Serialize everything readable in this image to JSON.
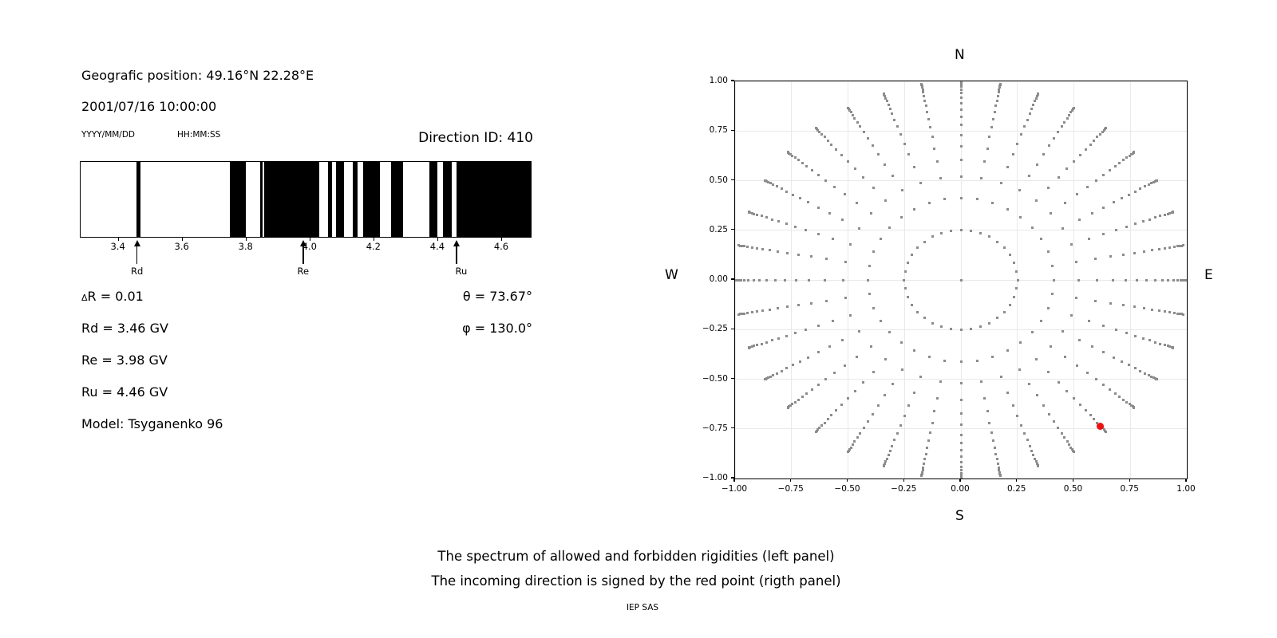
{
  "page": {
    "background": "#ffffff"
  },
  "header": {
    "geographic_position": "Geografic position: 49.16°N 22.28°E",
    "datetime": "2001/07/16 10:00:00",
    "date_format_label": "YYYY/MM/DD",
    "time_format_label": "HH:MM:SS",
    "direction_id": "Direction ID: 410"
  },
  "parameters": {
    "delta_symbol": "Δ",
    "delta_r_text": "R = 0.01",
    "rd_text": "Rd = 3.46 GV",
    "re_text": "Re = 3.98 GV",
    "ru_text": "Ru = 4.46 GV",
    "model_text": "Model: Tsyganenko 96",
    "theta_text": "θ = 73.67°",
    "phi_text": "φ = 130.0°"
  },
  "caption": {
    "line1": "The spectrum of allowed and forbidden rigidities (left panel)",
    "line2": "The incoming direction is signed by the red point (rigth panel)",
    "credit": "IEP SAS"
  },
  "chart_data": [
    {
      "type": "bar",
      "subtype": "rigidity-spectrum-barcode",
      "description": "Allowed (white) and forbidden (black) rigidity intervals in GV",
      "xlim": [
        3.281,
        4.695
      ],
      "xticks": [
        3.4,
        3.6,
        3.8,
        4.0,
        4.2,
        4.4,
        4.6
      ],
      "xtick_labels": [
        "3.4",
        "3.6",
        "3.8",
        "4.0",
        "4.2",
        "4.4",
        "4.6"
      ],
      "forbidden_intervals_gv": [
        [
          3.457,
          3.468
        ],
        [
          3.75,
          3.8
        ],
        [
          3.845,
          3.853
        ],
        [
          3.858,
          4.031
        ],
        [
          4.059,
          4.071
        ],
        [
          4.084,
          4.108
        ],
        [
          4.136,
          4.15
        ],
        [
          4.169,
          4.222
        ],
        [
          4.257,
          4.294
        ],
        [
          4.376,
          4.402
        ],
        [
          4.418,
          4.446
        ],
        [
          4.462,
          4.695
        ]
      ],
      "bar_color": "#000000",
      "background": "#ffffff",
      "markers": [
        {
          "label": "Rd",
          "value_gv": 3.46
        },
        {
          "label": "Re",
          "value_gv": 3.98
        },
        {
          "label": "Ru",
          "value_gv": 4.46
        }
      ]
    },
    {
      "type": "scatter",
      "subtype": "incoming-direction-map",
      "xlim": [
        -1.0,
        1.0
      ],
      "ylim": [
        -1.0,
        1.0
      ],
      "grid": true,
      "xticks": [
        -1.0,
        -0.75,
        -0.5,
        -0.25,
        0.0,
        0.25,
        0.5,
        0.75,
        1.0
      ],
      "yticks": [
        1.0,
        0.75,
        0.5,
        0.25,
        0.0,
        -0.25,
        -0.5,
        -0.75,
        -1.0
      ],
      "xtick_labels": [
        "−1.00",
        "−0.75",
        "−0.50",
        "−0.25",
        "0.00",
        "0.25",
        "0.50",
        "0.75",
        "1.00"
      ],
      "ytick_labels": [
        "1.00",
        "0.75",
        "0.50",
        "0.25",
        "0.00",
        "−0.25",
        "−0.50",
        "−0.75",
        "−1.00"
      ],
      "compass": {
        "top": "N",
        "bottom": "S",
        "left": "W",
        "right": "E"
      },
      "series": [
        {
          "name": "direction-grid-dots",
          "color": "#8c8c8c",
          "marker_px": 3,
          "generator": {
            "kind": "radial-spokes",
            "azimuth_deg_start": 0,
            "azimuth_deg_step": 10,
            "azimuth_count": 36,
            "radii": [
              0.251,
              0.412,
              0.52,
              0.604,
              0.672,
              0.73,
              0.78,
              0.822,
              0.859,
              0.891,
              0.917,
              0.94,
              0.959,
              0.974,
              0.985,
              0.993,
              0.998,
              1.0
            ],
            "center_dot": true
          }
        },
        {
          "name": "selected-direction",
          "color": "#ee1111",
          "marker_px": 9,
          "points": [
            [
              0.616,
              -0.735
            ]
          ]
        }
      ]
    }
  ]
}
